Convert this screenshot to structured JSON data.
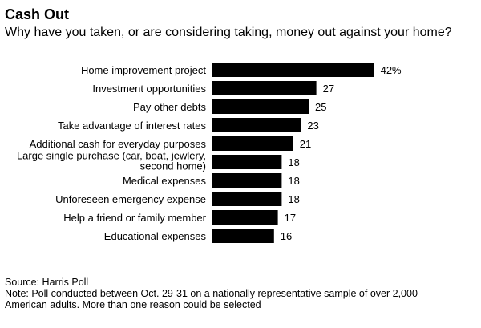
{
  "header": {
    "title": "Cash Out",
    "subtitle": "Why have you taken, or are considering taking, money out against your home?"
  },
  "footer": {
    "source": "Source: Harris Poll",
    "note": "Note: Poll conducted between Oct. 29-31 on a nationally representative sample of over 2,000 American adults. More than one reason could be selected"
  },
  "colors": {
    "bar": "#000000",
    "text": "#000000",
    "background": "#ffffff"
  },
  "chart_data": {
    "type": "bar",
    "orientation": "horizontal",
    "categories": [
      "Home improvement project",
      "Investment opportunities",
      "Pay other debts",
      "Take advantage of interest rates",
      "Additional cash for everyday purposes",
      "Large single purchase (car, boat, jewlery, second home)",
      "Medical expenses",
      "Unforeseen emergency expense",
      "Help a friend or family member",
      "Educational expenses"
    ],
    "category_lines": [
      [
        "Home improvement project"
      ],
      [
        "Investment opportunities"
      ],
      [
        "Pay other debts"
      ],
      [
        "Take advantage of interest rates"
      ],
      [
        "Additional cash for everyday purposes"
      ],
      [
        "Large single purchase (car, boat, jewlery,",
        "second home)"
      ],
      [
        "Medical expenses"
      ],
      [
        "Unforeseen emergency expense"
      ],
      [
        "Help a friend or family member"
      ],
      [
        "Educational expenses"
      ]
    ],
    "values": [
      42,
      27,
      25,
      23,
      21,
      18,
      18,
      18,
      17,
      16
    ],
    "value_labels": [
      "42%",
      "27",
      "25",
      "23",
      "21",
      "18",
      "18",
      "18",
      "17",
      "16"
    ],
    "unit": "%",
    "xlim": [
      0,
      42
    ],
    "grid": false,
    "legend": "none"
  }
}
